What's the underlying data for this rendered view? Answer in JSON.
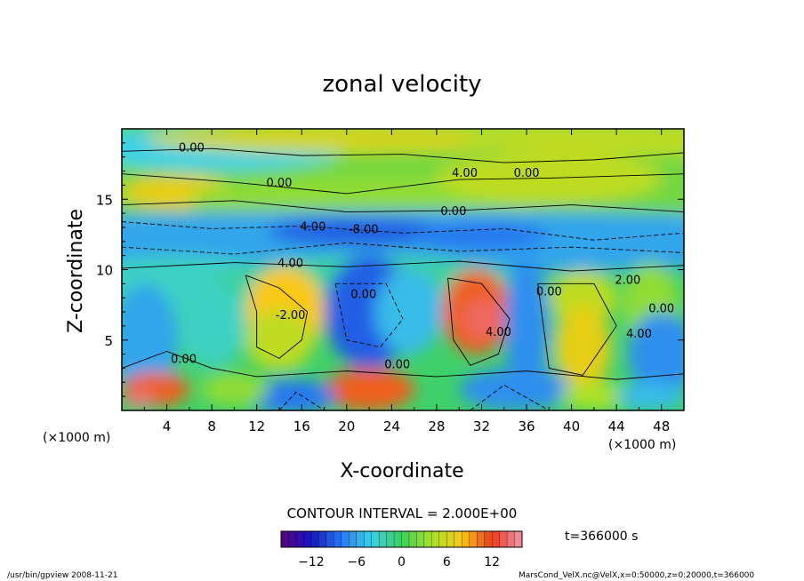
{
  "chart_data": {
    "type": "heatmap",
    "title": "zonal velocity",
    "xlabel": "X-coordinate",
    "ylabel": "Z-coordinate",
    "x_unit": "(×1000 m)",
    "y_unit": "(×1000 m)",
    "xlim": [
      0,
      50
    ],
    "ylim": [
      0,
      20
    ],
    "x_ticks": [
      4,
      8,
      12,
      16,
      20,
      24,
      28,
      32,
      36,
      40,
      44,
      48
    ],
    "y_ticks": [
      5,
      10,
      15
    ],
    "contour_interval_text": "CONTOUR INTERVAL = 2.000E+00",
    "colorbar": {
      "range": [
        -16,
        16
      ],
      "ticks": [
        -12,
        -6,
        0,
        6,
        12
      ]
    },
    "contour_labels": [
      {
        "x": 6.2,
        "z": 18.7,
        "text": "0.00"
      },
      {
        "x": 14,
        "z": 16.2,
        "text": "0.00"
      },
      {
        "x": 30.5,
        "z": 16.9,
        "text": "4.00"
      },
      {
        "x": 36,
        "z": 16.9,
        "text": "0.00"
      },
      {
        "x": 29.5,
        "z": 14.2,
        "text": "0.00"
      },
      {
        "x": 17,
        "z": 13.1,
        "text": "4.00"
      },
      {
        "x": 21.5,
        "z": 12.9,
        "text": "-8.00"
      },
      {
        "x": 15,
        "z": 10.5,
        "text": "4.00"
      },
      {
        "x": 21.5,
        "z": 8.3,
        "text": "0.00"
      },
      {
        "x": 15,
        "z": 6.8,
        "text": "-2.00"
      },
      {
        "x": 33.5,
        "z": 5.6,
        "text": "4.00"
      },
      {
        "x": 38,
        "z": 8.5,
        "text": "0.00"
      },
      {
        "x": 45,
        "z": 9.3,
        "text": "2.00"
      },
      {
        "x": 48,
        "z": 7.3,
        "text": "0.00"
      },
      {
        "x": 46,
        "z": 5.5,
        "text": "4.00"
      },
      {
        "x": 5.5,
        "z": 3.7,
        "text": "0.00"
      },
      {
        "x": 24.5,
        "z": 3.3,
        "text": "0.00"
      }
    ],
    "time_text": "t=366000 s"
  },
  "footer": {
    "left": "/usr/bin/gpview  2008-11-21",
    "right": "MarsCond_VelX.nc@VelX,x=0:50000,z=0:20000,t=366000"
  }
}
